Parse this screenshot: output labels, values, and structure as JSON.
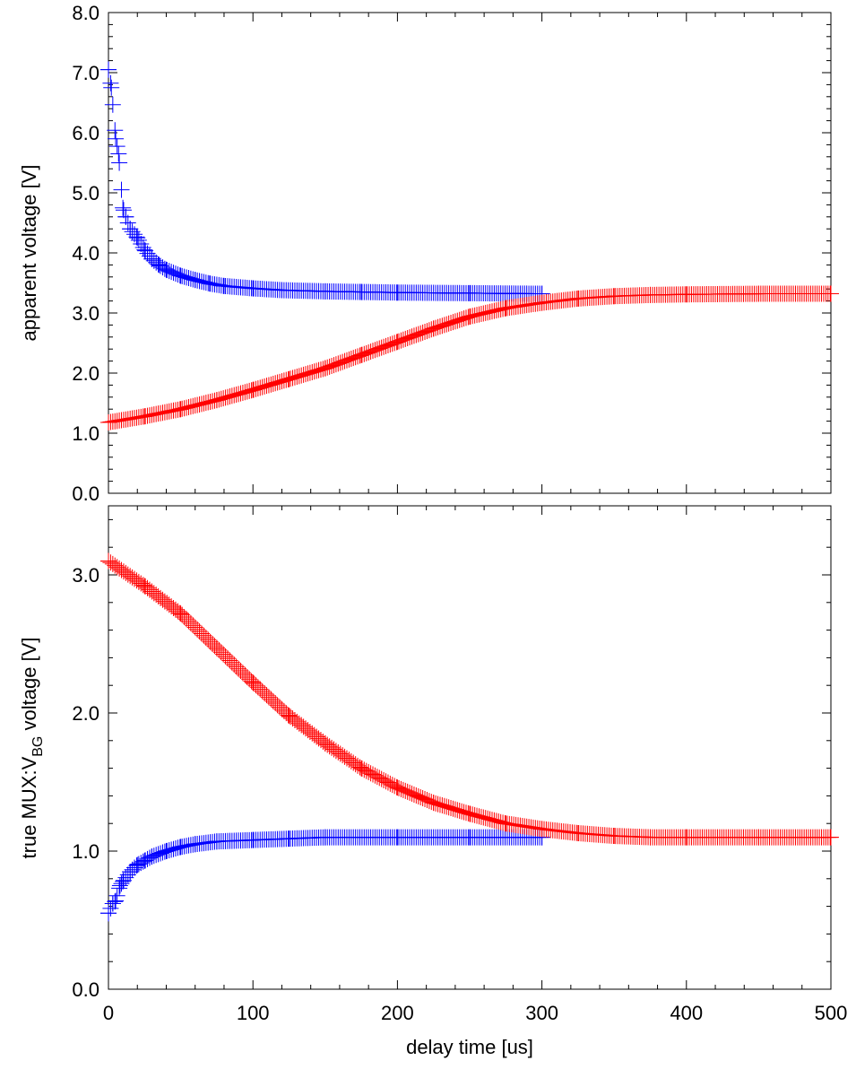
{
  "chart_data": [
    {
      "type": "scatter",
      "title": "",
      "xlabel": "",
      "ylabel": "apparent voltage [V]",
      "xlim": [
        0,
        500
      ],
      "ylim": [
        0,
        8
      ],
      "x_ticks": [
        "0",
        "100",
        "200",
        "300",
        "400",
        "500"
      ],
      "y_ticks": [
        "0.0",
        "1.0",
        "2.0",
        "3.0",
        "4.0",
        "5.0",
        "6.0",
        "7.0",
        "8.0"
      ],
      "show_x_tick_labels": false,
      "grid": false,
      "marker": "plus",
      "series": [
        {
          "color": "#0000ff",
          "x": [
            0,
            2,
            5,
            7,
            10,
            12,
            15,
            20,
            25,
            30,
            35,
            40,
            50,
            60,
            70,
            80,
            100,
            120,
            150,
            175,
            200,
            250,
            300
          ],
          "y": [
            7.05,
            6.75,
            5.9,
            5.65,
            4.75,
            4.6,
            4.4,
            4.25,
            4.05,
            3.9,
            3.8,
            3.72,
            3.62,
            3.55,
            3.49,
            3.45,
            3.41,
            3.38,
            3.36,
            3.35,
            3.34,
            3.33,
            3.32
          ]
        },
        {
          "color": "#ff0000",
          "x": [
            0,
            25,
            50,
            75,
            100,
            125,
            150,
            175,
            200,
            225,
            250,
            275,
            300,
            325,
            350,
            375,
            400,
            450,
            500
          ],
          "y": [
            1.18,
            1.28,
            1.4,
            1.55,
            1.72,
            1.9,
            2.08,
            2.3,
            2.52,
            2.74,
            2.94,
            3.08,
            3.17,
            3.24,
            3.28,
            3.3,
            3.31,
            3.32,
            3.32
          ]
        }
      ]
    },
    {
      "type": "scatter",
      "title": "",
      "xlabel": "delay time [us]",
      "ylabel_main": "true MUX:V",
      "ylabel_subscript": "BG",
      "ylabel_suffix": " voltage [V]",
      "xlim": [
        0,
        500
      ],
      "ylim": [
        0,
        3.5
      ],
      "x_ticks": [
        "0",
        "100",
        "200",
        "300",
        "400",
        "500"
      ],
      "y_ticks": [
        "0.0",
        "1.0",
        "2.0",
        "3.0"
      ],
      "y_tick_values": [
        0,
        1,
        2,
        3
      ],
      "grid": false,
      "marker": "plus",
      "series": [
        {
          "color": "#0000ff",
          "x": [
            0,
            3,
            5,
            8,
            10,
            15,
            20,
            25,
            30,
            40,
            50,
            60,
            75,
            100,
            125,
            150,
            200,
            250,
            300
          ],
          "y": [
            0.55,
            0.62,
            0.64,
            0.75,
            0.78,
            0.85,
            0.9,
            0.93,
            0.96,
            1.0,
            1.03,
            1.05,
            1.07,
            1.08,
            1.09,
            1.1,
            1.1,
            1.1,
            1.1
          ]
        },
        {
          "color": "#ff0000",
          "x": [
            0,
            25,
            50,
            75,
            100,
            125,
            150,
            175,
            200,
            225,
            250,
            275,
            300,
            325,
            350,
            375,
            400,
            450,
            500
          ],
          "y": [
            3.1,
            2.92,
            2.72,
            2.47,
            2.22,
            1.98,
            1.78,
            1.6,
            1.46,
            1.35,
            1.27,
            1.2,
            1.16,
            1.13,
            1.11,
            1.1,
            1.1,
            1.1,
            1.1
          ]
        }
      ]
    }
  ]
}
